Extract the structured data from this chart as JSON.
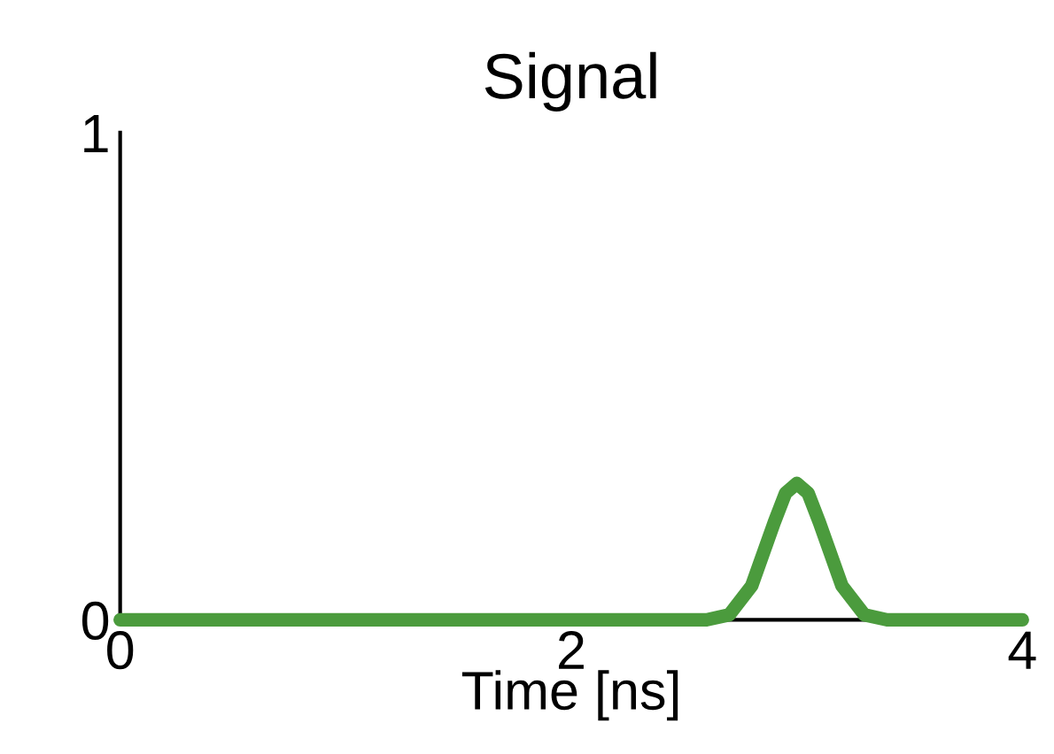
{
  "chart_data": {
    "type": "line",
    "title": "Signal",
    "xlabel": "Time [ns]",
    "x": [
      0,
      2.6,
      2.7,
      2.8,
      2.9,
      2.95,
      3.0,
      3.05,
      3.1,
      3.2,
      3.3,
      3.4,
      4
    ],
    "series": [
      {
        "color": "#4b9b3d",
        "values": [
          0,
          0,
          0.01,
          0.07,
          0.2,
          0.26,
          0.28,
          0.26,
          0.2,
          0.07,
          0.01,
          0,
          0
        ]
      }
    ],
    "xlim": [
      0,
      4
    ],
    "ylim": [
      0,
      1
    ],
    "xticks": [
      0,
      2,
      4
    ],
    "yticks": [
      0,
      1
    ],
    "grid": false,
    "legend": false,
    "marker": "none",
    "line_style": "solid"
  }
}
